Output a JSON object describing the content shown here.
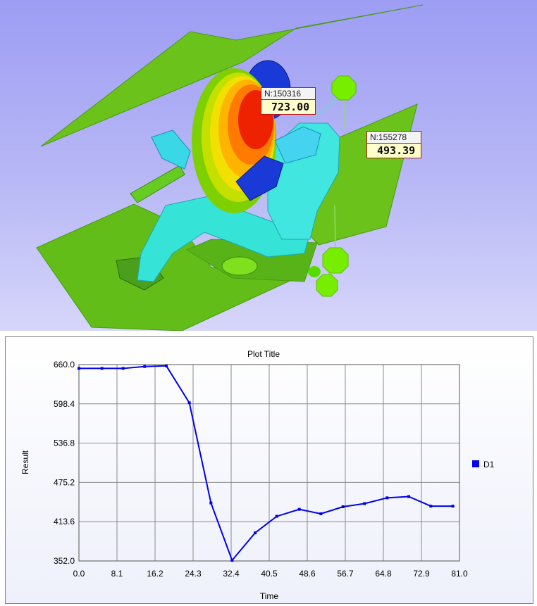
{
  "scene": {
    "probes": [
      {
        "node": "N:150316",
        "value": "723.00"
      },
      {
        "node": "N:155278",
        "value": "493.39"
      }
    ],
    "colors": {
      "background_top": "#9d9df4",
      "plate_green": "#6ac21a",
      "dummy_cyan": "#35e3d7",
      "airbag_red": "#ee2200",
      "marker_green": "#77ee00",
      "part_blue": "#1a3ad8"
    }
  },
  "plot": {
    "title": "Plot Title",
    "legend": [
      {
        "name": "D1",
        "color": "#0000ee"
      }
    ],
    "chart_data": {
      "type": "line",
      "title": "Plot Title",
      "xlabel": "Time",
      "ylabel": "Result",
      "xlim": [
        0.0,
        81.0
      ],
      "ylim": [
        352.0,
        660.0
      ],
      "x_ticks": [
        "0.0",
        "8.1",
        "16.2",
        "24.3",
        "32.4",
        "40.5",
        "48.6",
        "56.7",
        "64.8",
        "72.9",
        "81.0"
      ],
      "y_ticks": [
        "660.0",
        "598.4",
        "536.8",
        "475.2",
        "413.6",
        "352.0"
      ],
      "grid": true,
      "legend_position": "right",
      "series": [
        {
          "name": "D1",
          "color": "#0000ee",
          "x": [
            0.0,
            4.9,
            9.4,
            14.0,
            18.6,
            23.5,
            28.1,
            32.6,
            37.5,
            42.1,
            46.9,
            51.5,
            56.2,
            60.8,
            65.6,
            70.2,
            74.9,
            79.6
          ],
          "y": [
            654,
            654,
            654,
            657,
            658,
            600,
            443,
            353,
            396,
            422,
            433,
            426,
            437,
            442,
            451,
            453,
            438,
            438
          ]
        }
      ]
    }
  }
}
